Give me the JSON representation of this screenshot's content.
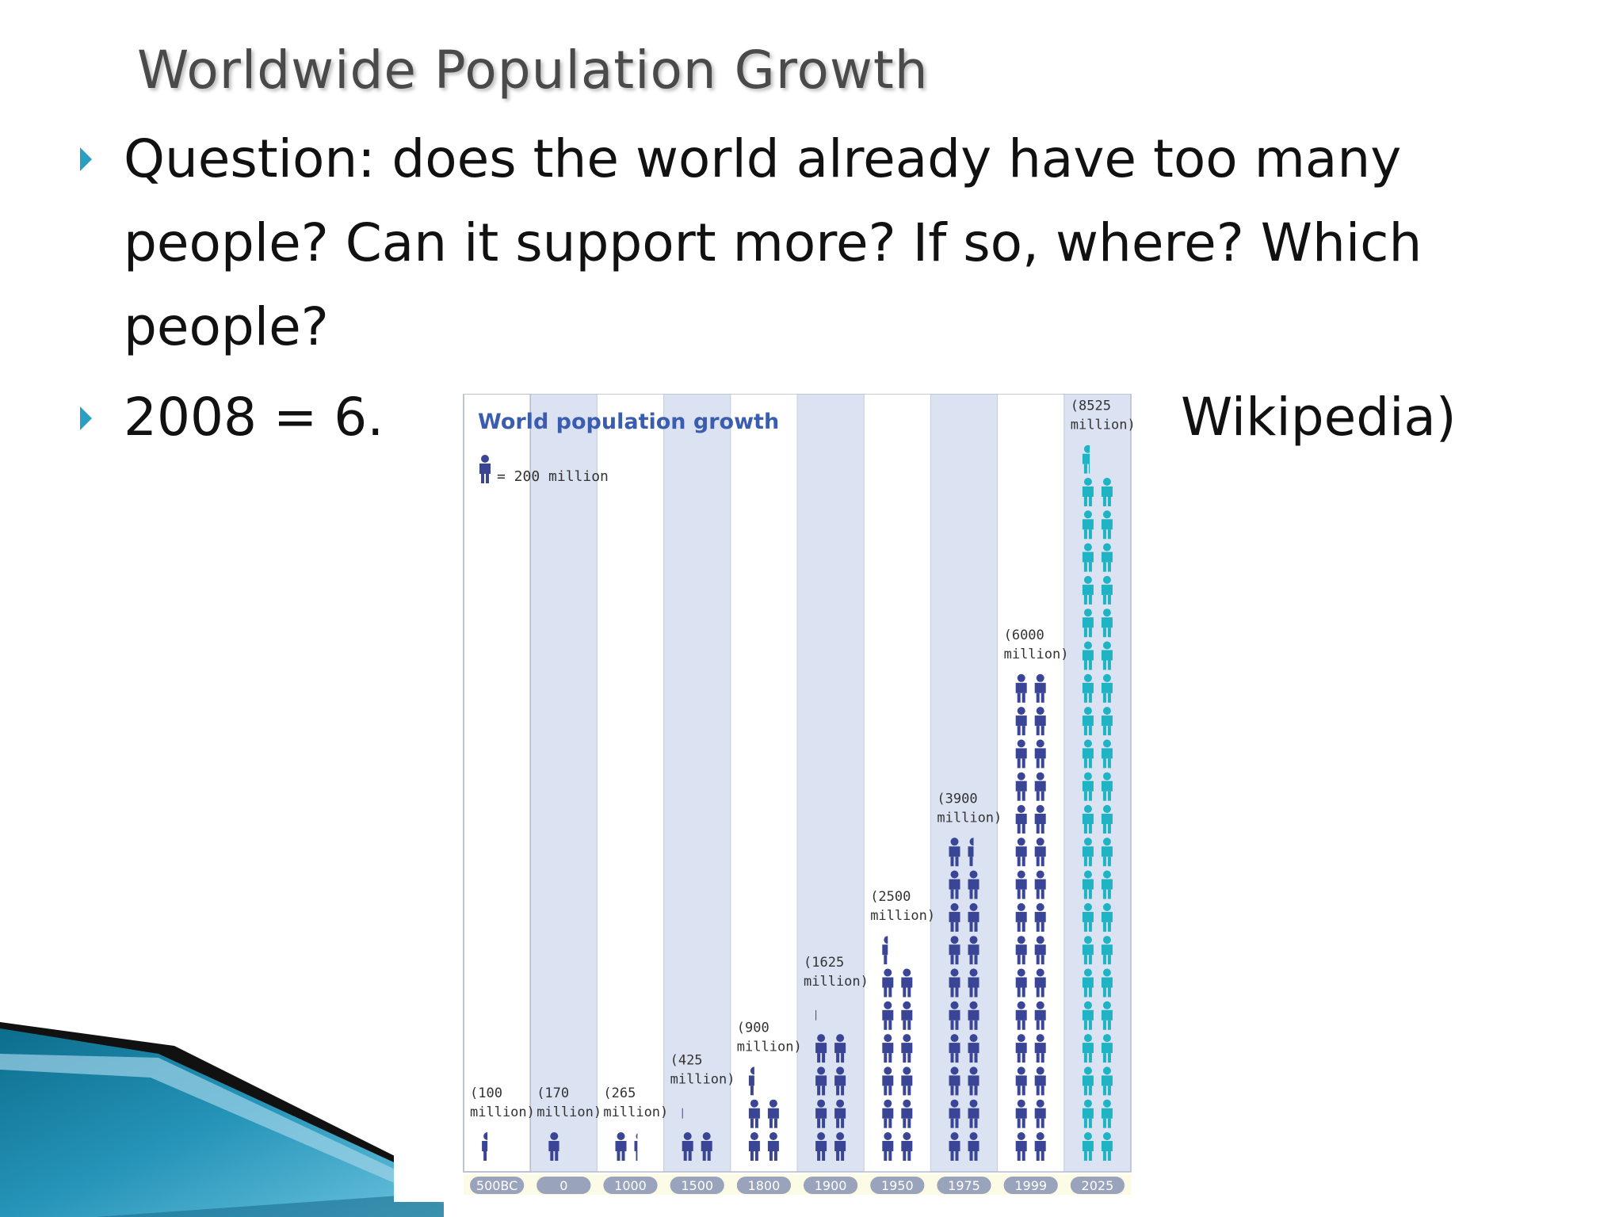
{
  "slide": {
    "title": "Worldwide Population Growth",
    "bullets": [
      {
        "lines": [
          "Question: does the world already have too many",
          "people?  Can it support more?  If so, where?  Which",
          "people?"
        ]
      },
      {
        "left": "2008 = 6.",
        "right": "Wikipedia)"
      }
    ]
  },
  "chart_data": {
    "type": "bar",
    "title": "World population growth",
    "legend": {
      "icon": "person-icon",
      "text": "= 200 million",
      "unit_millions": 200
    },
    "categories": [
      "500BC",
      "0",
      "1000",
      "1500",
      "1800",
      "1900",
      "1950",
      "1975",
      "1999",
      "2025"
    ],
    "values": [
      100,
      170,
      265,
      425,
      900,
      1625,
      2500,
      3900,
      6000,
      8525
    ],
    "value_labels": [
      [
        "(100",
        "million)"
      ],
      [
        "(170",
        "million)"
      ],
      [
        "(265",
        "million)"
      ],
      [
        "(425",
        "million)"
      ],
      [
        "(900",
        "million)"
      ],
      [
        "(1625",
        "million)"
      ],
      [
        "(2500",
        "million)"
      ],
      [
        "(3900",
        "million)"
      ],
      [
        "(6000",
        "million)"
      ],
      [
        "(8525",
        "million)"
      ]
    ],
    "colors": {
      "figure": "#3b4596",
      "projection": "#1fb3c4",
      "column_alt": "#dbe3f2",
      "column_base": "#ffffff",
      "title": "#3b5db0",
      "pill": "#9aa3bc",
      "bottom_strip": "#fbfbe6"
    },
    "projected_categories": [
      "2025"
    ]
  }
}
